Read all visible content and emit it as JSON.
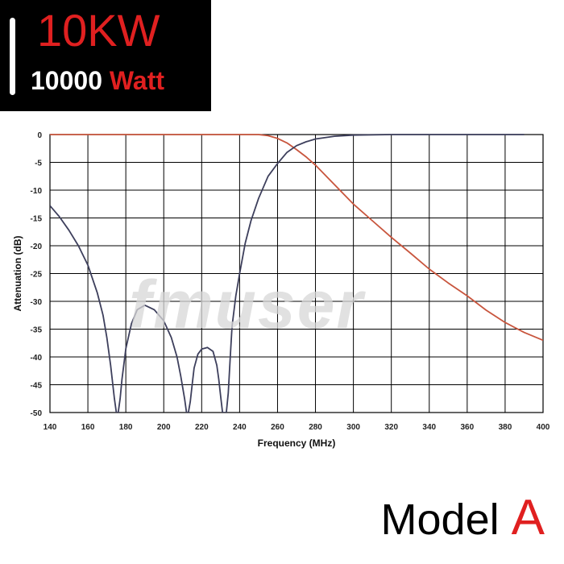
{
  "badge": {
    "power": "10KW",
    "watts_number": "10000",
    "watts_unit": "Watt"
  },
  "watermark": "fmuser",
  "model": {
    "word": "Model",
    "letter": "A"
  },
  "colors": {
    "accent_red": "#e02020",
    "passband_curve": "#c8553d",
    "reject_curve": "#3d3f5c",
    "grid": "#000000"
  },
  "chart_data": {
    "type": "line",
    "xlabel": "Frequency (MHz)",
    "ylabel": "Attenuation (dB)",
    "xlim": [
      140,
      400
    ],
    "ylim": [
      -50,
      0
    ],
    "x_ticks": [
      140,
      160,
      180,
      200,
      220,
      240,
      260,
      280,
      300,
      320,
      340,
      360,
      380,
      400
    ],
    "y_ticks": [
      0,
      -5,
      -10,
      -15,
      -20,
      -25,
      -30,
      -35,
      -40,
      -45,
      -50
    ],
    "grid": true,
    "legend": "none",
    "series": [
      {
        "color": "#c8553d",
        "x": [
          140,
          200,
          240,
          250,
          255,
          260,
          265,
          270,
          275,
          280,
          290,
          300,
          310,
          320,
          330,
          340,
          350,
          360,
          370,
          380,
          390,
          400
        ],
        "values": [
          0,
          0,
          0,
          0,
          -0.2,
          -0.7,
          -1.5,
          -2.7,
          -4.0,
          -5.5,
          -9.0,
          -12.5,
          -15.5,
          -18.5,
          -21.3,
          -24.2,
          -26.7,
          -29.0,
          -31.6,
          -33.8,
          -35.6,
          -37.0
        ]
      },
      {
        "color": "#3d3f5c",
        "x": [
          140,
          145,
          150,
          155,
          160,
          165,
          168,
          170,
          172,
          174,
          175,
          176,
          177,
          178,
          180,
          183,
          186,
          190,
          195,
          200,
          204,
          207,
          209,
          211,
          212,
          213,
          214,
          215,
          216,
          218,
          220,
          223,
          226,
          228,
          229,
          230,
          231,
          232,
          233,
          234,
          235,
          236,
          238,
          240,
          243,
          246,
          250,
          255,
          260,
          265,
          270,
          275,
          280,
          290,
          300,
          320,
          340,
          360,
          390
        ],
        "values": [
          -12.8,
          -14.8,
          -17.2,
          -20.0,
          -23.5,
          -28.5,
          -32.5,
          -36.5,
          -41.5,
          -47.5,
          -50,
          -50,
          -47.5,
          -44.0,
          -38.5,
          -34.0,
          -31.5,
          -30.7,
          -31.5,
          -33.5,
          -36.5,
          -40.0,
          -43.5,
          -47.5,
          -50,
          -50,
          -48.0,
          -45.0,
          -42.0,
          -39.5,
          -38.6,
          -38.3,
          -39.0,
          -41.5,
          -44.0,
          -47.0,
          -50,
          -50,
          -50,
          -46.5,
          -40.5,
          -34.5,
          -29.0,
          -25.0,
          -19.5,
          -15.5,
          -11.5,
          -7.5,
          -5.2,
          -3.2,
          -2.0,
          -1.3,
          -0.8,
          -0.3,
          -0.1,
          0,
          0,
          0,
          0
        ]
      }
    ]
  }
}
